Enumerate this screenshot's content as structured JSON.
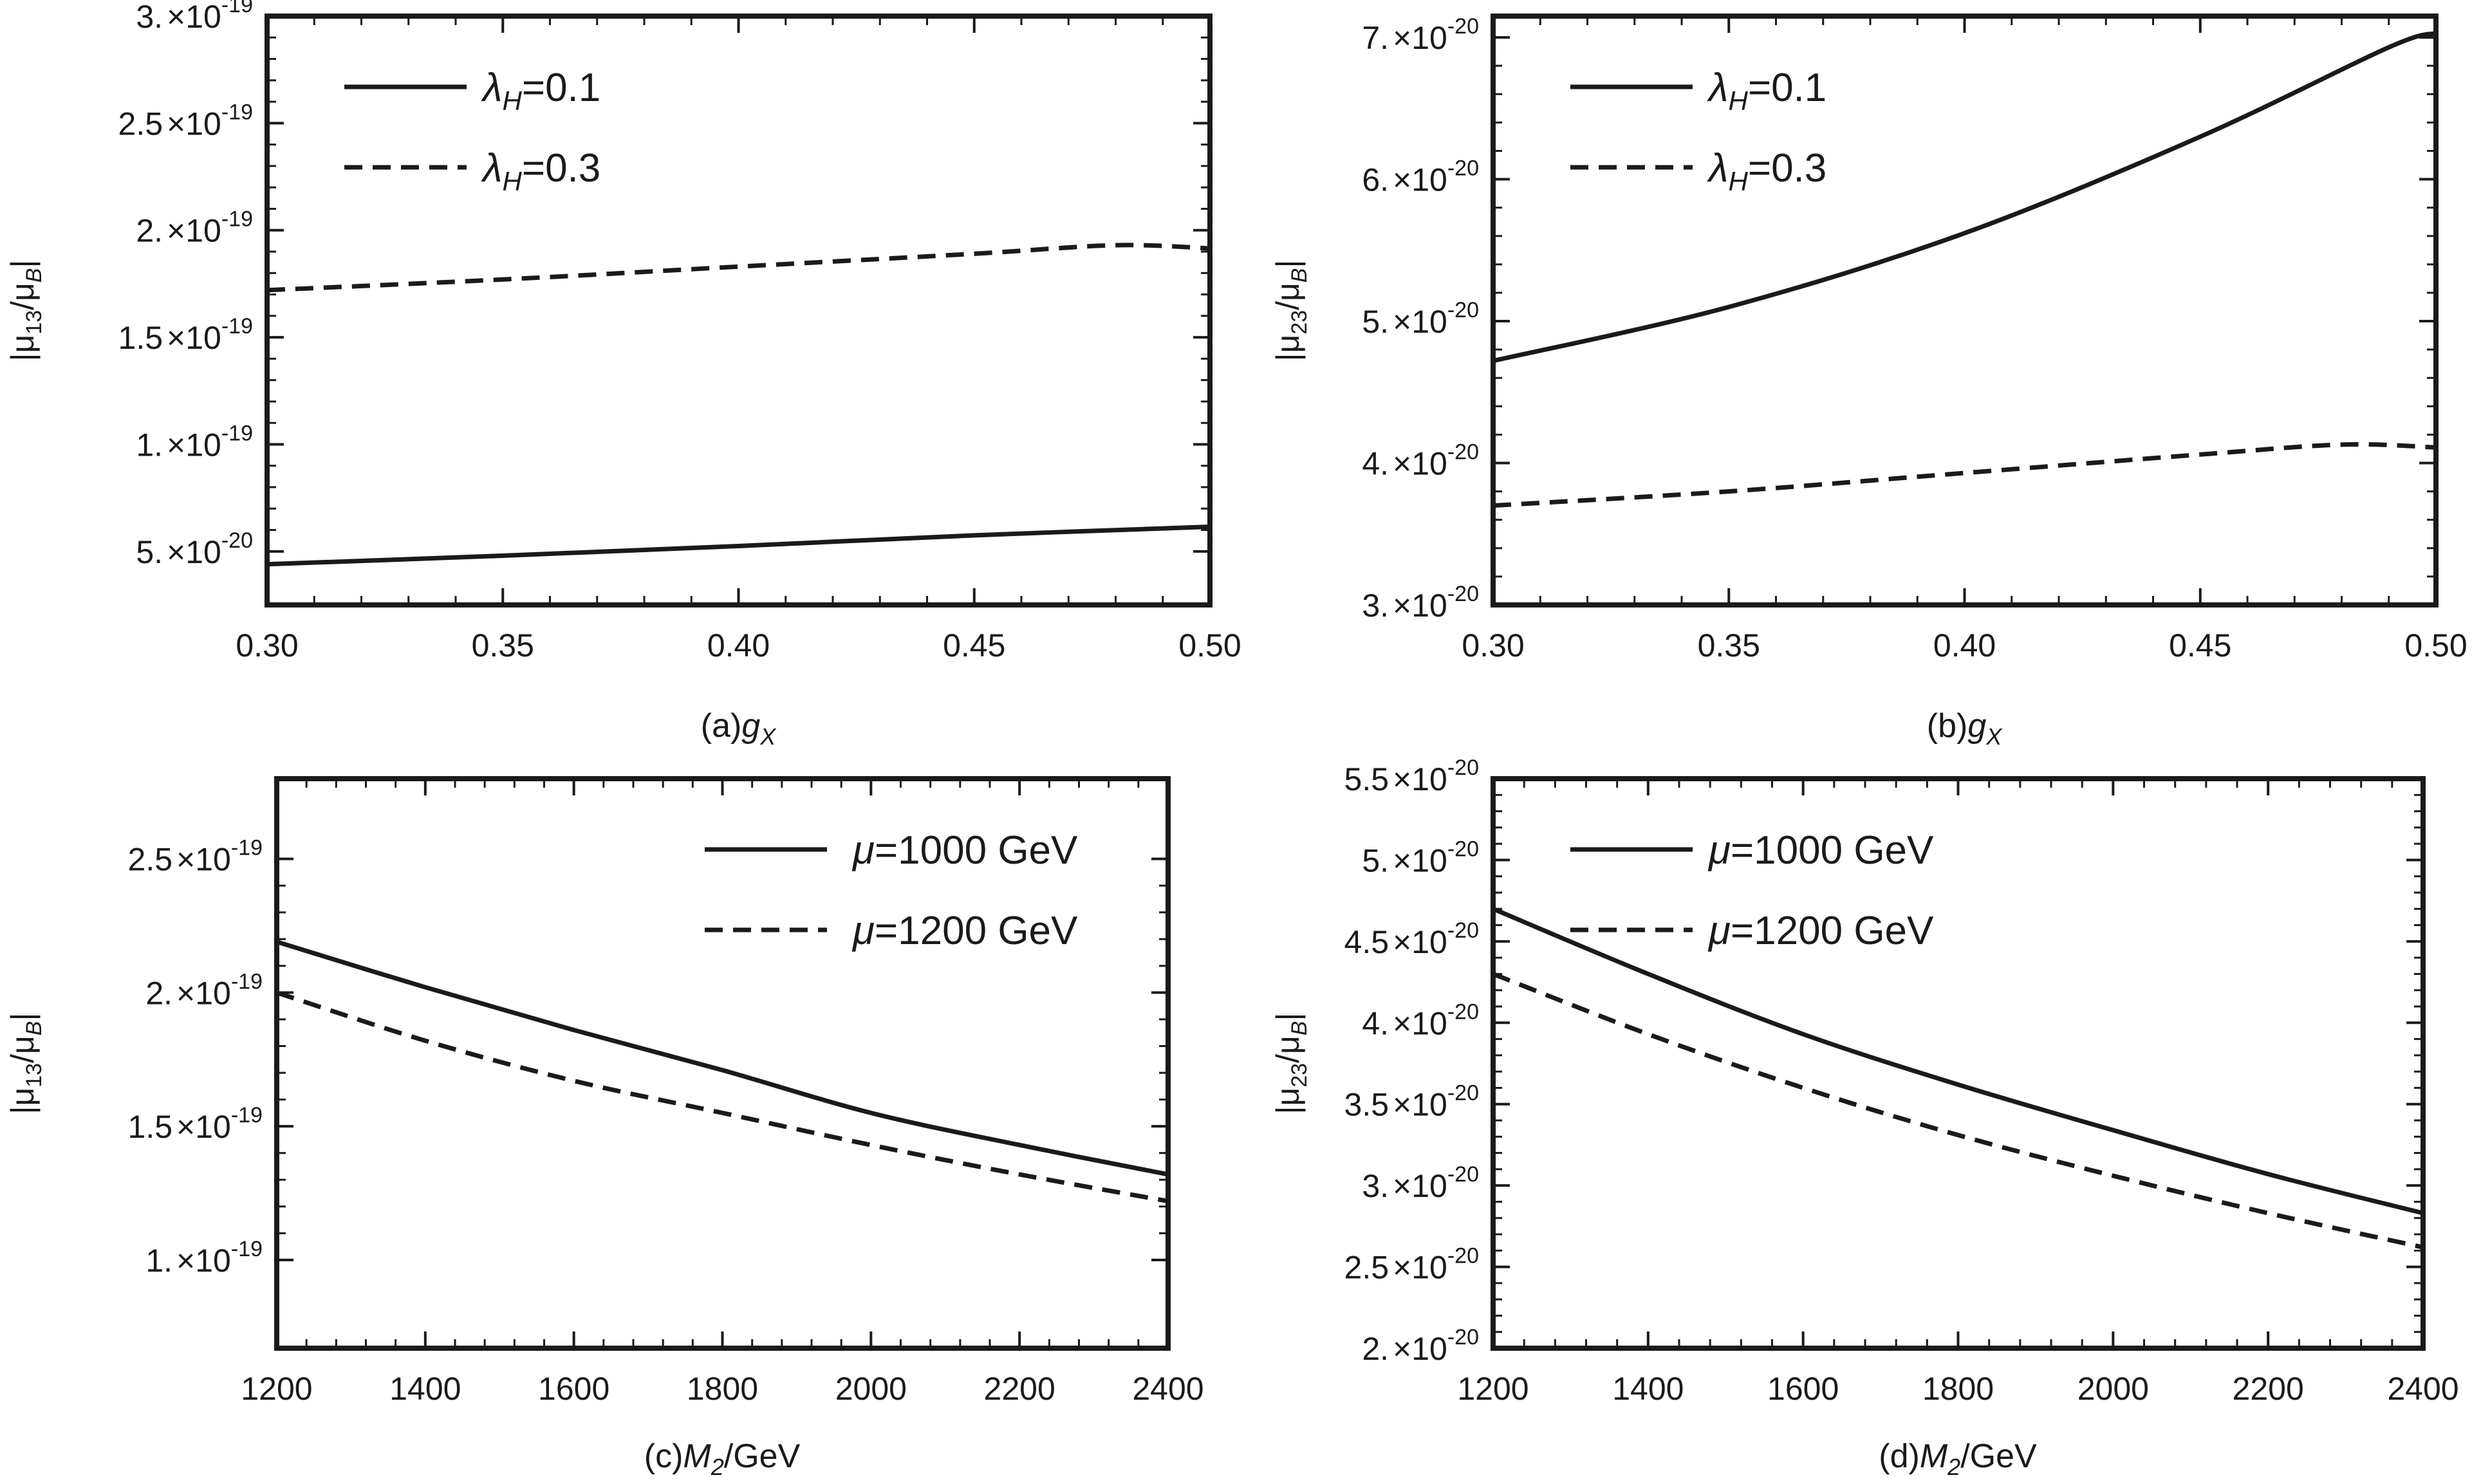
{
  "chart_data": [
    {
      "id": "a",
      "type": "line",
      "caption": {
        "prefix": "(a)",
        "sym": "g",
        "sub": "X",
        "suffix": ""
      },
      "ylabel": {
        "pre": "|μ",
        "sub": "13",
        "mid": "/μ",
        "sub2": "B",
        "post": "|"
      },
      "xlim": [
        0.3,
        0.5
      ],
      "ylim": [
        2.5e-20,
        3e-19
      ],
      "x_ticks": [
        {
          "v": 0.3,
          "label": "0.30"
        },
        {
          "v": 0.35,
          "label": "0.35"
        },
        {
          "v": 0.4,
          "label": "0.40"
        },
        {
          "v": 0.45,
          "label": "0.45"
        },
        {
          "v": 0.5,
          "label": "0.50"
        }
      ],
      "y_ticks": [
        {
          "v": 5e-20,
          "mant": "5.",
          "exp": "-20"
        },
        {
          "v": 1e-19,
          "mant": "1.",
          "exp": "-19"
        },
        {
          "v": 1.5e-19,
          "mant": "1.5",
          "exp": "-19"
        },
        {
          "v": 2e-19,
          "mant": "2.",
          "exp": "-19"
        },
        {
          "v": 2.5e-19,
          "mant": "2.5",
          "exp": "-19"
        },
        {
          "v": 3e-19,
          "mant": "3.",
          "exp": "-19"
        }
      ],
      "legend": {
        "position": "top-left"
      },
      "series": [
        {
          "sym": "λ",
          "sub": "H",
          "rest": "=0.1",
          "style": "solid",
          "x": [
            0.3,
            0.35,
            0.4,
            0.45,
            0.5
          ],
          "y": [
            4.4e-20,
            4.8e-20,
            5.25e-20,
            5.75e-20,
            6.15e-20
          ]
        },
        {
          "sym": "λ",
          "sub": "H",
          "rest": "=0.3",
          "style": "dashed",
          "x": [
            0.3,
            0.35,
            0.4,
            0.45,
            0.48,
            0.5
          ],
          "y": [
            1.72e-19,
            1.77e-19,
            1.83e-19,
            1.89e-19,
            1.93e-19,
            1.915e-19
          ]
        }
      ]
    },
    {
      "id": "b",
      "type": "line",
      "caption": {
        "prefix": "(b)",
        "sym": "g",
        "sub": "X",
        "suffix": ""
      },
      "ylabel": {
        "pre": "|μ",
        "sub": "23",
        "mid": "/μ",
        "sub2": "B",
        "post": "|"
      },
      "xlim": [
        0.3,
        0.5
      ],
      "ylim": [
        3e-20,
        7.15e-20
      ],
      "x_ticks": [
        {
          "v": 0.3,
          "label": "0.30"
        },
        {
          "v": 0.35,
          "label": "0.35"
        },
        {
          "v": 0.4,
          "label": "0.40"
        },
        {
          "v": 0.45,
          "label": "0.45"
        },
        {
          "v": 0.5,
          "label": "0.50"
        }
      ],
      "y_ticks": [
        {
          "v": 3e-20,
          "mant": "3.",
          "exp": "-20"
        },
        {
          "v": 4e-20,
          "mant": "4.",
          "exp": "-20"
        },
        {
          "v": 5e-20,
          "mant": "5.",
          "exp": "-20"
        },
        {
          "v": 6e-20,
          "mant": "6.",
          "exp": "-20"
        },
        {
          "v": 7e-20,
          "mant": "7.",
          "exp": "-20"
        }
      ],
      "legend": {
        "position": "top-left"
      },
      "series": [
        {
          "sym": "λ",
          "sub": "H",
          "rest": "=0.1",
          "style": "solid",
          "x": [
            0.3,
            0.35,
            0.4,
            0.45,
            0.49,
            0.5
          ],
          "y": [
            4.72e-20,
            5.1e-20,
            5.62e-20,
            6.3e-20,
            6.93e-20,
            7.03e-20
          ]
        },
        {
          "sym": "λ",
          "sub": "H",
          "rest": "=0.3",
          "style": "dashed",
          "x": [
            0.3,
            0.35,
            0.4,
            0.45,
            0.48,
            0.5
          ],
          "y": [
            3.7e-20,
            3.8e-20,
            3.93e-20,
            4.06e-20,
            4.13e-20,
            4.11e-20
          ]
        }
      ]
    },
    {
      "id": "c",
      "type": "line",
      "caption": {
        "prefix": "(c)",
        "sym": "M",
        "sub": "2",
        "suffix": "/GeV"
      },
      "ylabel": {
        "pre": "|μ",
        "sub": "13",
        "mid": "/μ",
        "sub2": "B",
        "post": "|"
      },
      "xlim": [
        1200,
        2400
      ],
      "ylim": [
        6.7e-20,
        2.8e-19
      ],
      "x_ticks": [
        {
          "v": 1200,
          "label": "1200"
        },
        {
          "v": 1400,
          "label": "1400"
        },
        {
          "v": 1600,
          "label": "1600"
        },
        {
          "v": 1800,
          "label": "1800"
        },
        {
          "v": 2000,
          "label": "2000"
        },
        {
          "v": 2200,
          "label": "2200"
        },
        {
          "v": 2400,
          "label": "2400"
        }
      ],
      "y_ticks": [
        {
          "v": 1e-19,
          "mant": "1.",
          "exp": "-19"
        },
        {
          "v": 1.5e-19,
          "mant": "1.5",
          "exp": "-19"
        },
        {
          "v": 2e-19,
          "mant": "2.",
          "exp": "-19"
        },
        {
          "v": 2.5e-19,
          "mant": "2.5",
          "exp": "-19"
        }
      ],
      "legend": {
        "position": "top-right"
      },
      "series": [
        {
          "sym": "μ",
          "sub": "",
          "rest": "=1000 GeV",
          "style": "solid",
          "x": [
            1200,
            1400,
            1600,
            1800,
            2000,
            2200,
            2400
          ],
          "y": [
            2.19e-19,
            2.02e-19,
            1.86e-19,
            1.71e-19,
            1.55e-19,
            1.43e-19,
            1.32e-19
          ]
        },
        {
          "sym": "μ",
          "sub": "",
          "rest": "=1200 GeV",
          "style": "dashed",
          "x": [
            1200,
            1400,
            1600,
            1800,
            2000,
            2200,
            2400
          ],
          "y": [
            2e-19,
            1.82e-19,
            1.67e-19,
            1.55e-19,
            1.43e-19,
            1.32e-19,
            1.22e-19
          ]
        }
      ]
    },
    {
      "id": "d",
      "type": "line",
      "caption": {
        "prefix": "(d)",
        "sym": "M",
        "sub": "2",
        "suffix": "/GeV"
      },
      "ylabel": {
        "pre": "|μ",
        "sub": "23",
        "mid": "/μ",
        "sub2": "B",
        "post": "|"
      },
      "xlim": [
        1200,
        2400
      ],
      "ylim": [
        2e-20,
        5.5e-20
      ],
      "x_ticks": [
        {
          "v": 1200,
          "label": "1200"
        },
        {
          "v": 1400,
          "label": "1400"
        },
        {
          "v": 1600,
          "label": "1600"
        },
        {
          "v": 1800,
          "label": "1800"
        },
        {
          "v": 2000,
          "label": "2000"
        },
        {
          "v": 2200,
          "label": "2200"
        },
        {
          "v": 2400,
          "label": "2400"
        }
      ],
      "y_ticks": [
        {
          "v": 2e-20,
          "mant": "2.",
          "exp": "-20"
        },
        {
          "v": 2.5e-20,
          "mant": "2.5",
          "exp": "-20"
        },
        {
          "v": 3e-20,
          "mant": "3.",
          "exp": "-20"
        },
        {
          "v": 3.5e-20,
          "mant": "3.5",
          "exp": "-20"
        },
        {
          "v": 4e-20,
          "mant": "4.",
          "exp": "-20"
        },
        {
          "v": 4.5e-20,
          "mant": "4.5",
          "exp": "-20"
        },
        {
          "v": 5e-20,
          "mant": "5.",
          "exp": "-20"
        },
        {
          "v": 5.5e-20,
          "mant": "5.5",
          "exp": "-20"
        }
      ],
      "legend": {
        "position": "top-left"
      },
      "series": [
        {
          "sym": "μ",
          "sub": "",
          "rest": "=1000 GeV",
          "style": "solid",
          "x": [
            1200,
            1400,
            1600,
            1800,
            2000,
            2200,
            2400
          ],
          "y": [
            4.7e-20,
            4.3e-20,
            3.93e-20,
            3.62e-20,
            3.34e-20,
            3.07e-20,
            2.83e-20
          ]
        },
        {
          "sym": "μ",
          "sub": "",
          "rest": "=1200 GeV",
          "style": "dashed",
          "x": [
            1200,
            1400,
            1600,
            1800,
            2000,
            2200,
            2400
          ],
          "y": [
            4.3e-20,
            3.93e-20,
            3.6e-20,
            3.31e-20,
            3.06e-20,
            2.83e-20,
            2.62e-20
          ]
        }
      ]
    }
  ]
}
